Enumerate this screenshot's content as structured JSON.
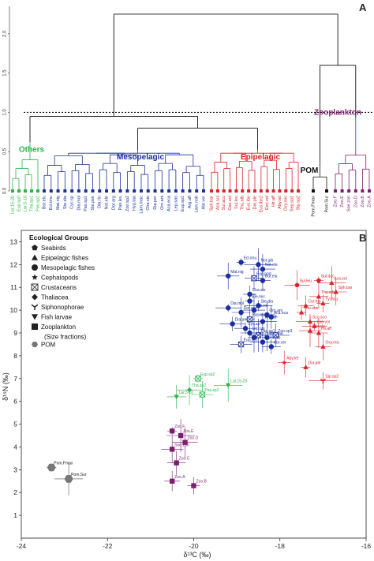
{
  "colors": {
    "others": "#2db34a",
    "mesopelagic": "#1a2f9c",
    "epipelagic": "#d8232a",
    "pom": "#111111",
    "zooplankton": "#7b1e6e",
    "gray": "#555555"
  },
  "chart_data": [
    {
      "type": "dendrogram",
      "panel_label": "A",
      "yaxis_ticks": [
        "0.0",
        "0.5",
        "1.0",
        "1.5",
        "2.0"
      ],
      "cut_height": 1.0,
      "groups": [
        {
          "name": "Others",
          "leaves": [
            "Lar.15-20",
            "Eup.sp2",
            "Lar.5-10",
            "Tha.sp1",
            "Pas.sp2"
          ]
        },
        {
          "name": "Mesopelagic",
          "leaves": [
            "Bor.elu",
            "Ect.imu",
            "Mat.nig",
            "Ste.dia",
            "Cyc.sp",
            "Dia.mol",
            "Pas.sp1",
            "Ste.pse",
            "Dia.rin",
            "Not.ele",
            "Dor.arg",
            "Pas.leu",
            "Zoo.sp2",
            "Hyg.taa",
            "Lam.mac",
            "Cha.sio",
            "Dia.per",
            "Orn.ani",
            "Aca.eca",
            "Lep.sas",
            "Eup.sp1",
            "Arg.aff",
            "Lam.nob",
            "Abr.ver"
          ]
        },
        {
          "name": "Epipelagic",
          "leaves": [
            "Sph.bar",
            "Aca.sul",
            "Sul.acu",
            "Gse.sol",
            "Sul.leu",
            "Thu.alb",
            "Eus.ibe",
            "Dar.ple",
            "Eus.ibe2",
            "Exo.vol",
            "Hir.aff",
            "Aby.tet",
            "Oxy.mic",
            "Sep.sp2",
            "Slp.sp2"
          ]
        },
        {
          "name": "POM",
          "leaves": [
            "Pom.Fmax",
            "Pom.Sur"
          ]
        },
        {
          "name": "Zooplankton",
          "leaves": [
            "Zoo.F",
            "Zoo.E",
            "Soe.zon",
            "Zoo.D",
            "Zoo.B",
            "Zoo.A"
          ]
        }
      ]
    },
    {
      "type": "scatter",
      "panel_label": "B",
      "xlabel": "δ¹³C (‰)",
      "ylabel": "δ¹⁵N (‰)",
      "xlim": [
        -24,
        -16
      ],
      "ylim": [
        0,
        13.5
      ],
      "xticks": [
        -24,
        -22,
        -20,
        -18,
        -16
      ],
      "yticks": [
        1,
        2,
        3,
        4,
        5,
        6,
        7,
        8,
        9,
        10,
        11,
        12,
        13
      ],
      "legend": {
        "title": "Ecological Groups",
        "entries": [
          {
            "marker": "pentagon",
            "label": "Seabirds"
          },
          {
            "marker": "triangle",
            "label": "Epipelagic fishes"
          },
          {
            "marker": "circle",
            "label": "Mesopelagic fishes"
          },
          {
            "marker": "star",
            "label": "Cephalopods"
          },
          {
            "marker": "boxx",
            "label": "Crustaceans"
          },
          {
            "marker": "diamond",
            "label": "Thaliacea"
          },
          {
            "marker": "tri-arrow",
            "label": "Siphonophorae"
          },
          {
            "marker": "down-triangle",
            "label": "Fish larvae"
          },
          {
            "marker": "square",
            "label": "Zooplankton"
          },
          {
            "marker": "none",
            "label": "(Size fractions)"
          },
          {
            "marker": "hexagon",
            "label": "POM"
          }
        ]
      },
      "series": [
        {
          "name": "Mesopelagic",
          "color_key": "mesopelagic",
          "points": [
            {
              "x": -18.9,
              "y": 12.1,
              "label": "Ect.imu",
              "marker": "circle"
            },
            {
              "x": -18.5,
              "y": 12.0,
              "label": "Not.gib",
              "marker": "circle"
            },
            {
              "x": -18.4,
              "y": 11.8,
              "label": "Not.ele",
              "marker": "circle"
            },
            {
              "x": -19.2,
              "y": 11.5,
              "label": "Mat.nig",
              "marker": "circle"
            },
            {
              "x": -18.6,
              "y": 11.4,
              "label": "Eup.pod",
              "marker": "boxx"
            },
            {
              "x": -18.4,
              "y": 11.3,
              "label": "Bor.elu",
              "marker": "circle"
            },
            {
              "x": -18.7,
              "y": 10.7,
              "label": "Cha.slo",
              "marker": "circle"
            },
            {
              "x": -18.7,
              "y": 10.4,
              "label": "Ele.mic",
              "marker": "circle"
            },
            {
              "x": -18.5,
              "y": 10.2,
              "label": "Ste.dia",
              "marker": "circle"
            },
            {
              "x": -19.2,
              "y": 10.1,
              "label": "Dia.mol",
              "marker": "circle"
            },
            {
              "x": -18.6,
              "y": 10.0,
              "label": "Dia.rin",
              "marker": "circle"
            },
            {
              "x": -18.9,
              "y": 9.9,
              "label": "Dor.arg",
              "marker": "circle"
            },
            {
              "x": -18.3,
              "y": 9.8,
              "label": "Orn.ani",
              "marker": "circle"
            },
            {
              "x": -18.2,
              "y": 9.7,
              "label": "Aca.eca",
              "marker": "circle"
            },
            {
              "x": -18.7,
              "y": 9.6,
              "label": "Pas.leu",
              "marker": "boxx"
            },
            {
              "x": -18.4,
              "y": 9.5,
              "label": "Arg.aff",
              "marker": "circle"
            },
            {
              "x": -19.1,
              "y": 9.4,
              "label": "Dia.per",
              "marker": "circle"
            },
            {
              "x": -18.8,
              "y": 9.2,
              "label": "Cyc.sp",
              "marker": "circle"
            },
            {
              "x": -18.7,
              "y": 9.0,
              "label": "Lep.las",
              "marker": "circle"
            },
            {
              "x": -18.5,
              "y": 8.9,
              "label": "Pas.sp1",
              "marker": "boxx"
            },
            {
              "x": -18.6,
              "y": 8.8,
              "label": "Lam.mac",
              "marker": "circle"
            },
            {
              "x": -18.3,
              "y": 8.8,
              "label": "Hyg.taa",
              "marker": "circle"
            },
            {
              "x": -18.1,
              "y": 8.9,
              "label": "Zoo.sp3",
              "marker": "boxx"
            },
            {
              "x": -18.4,
              "y": 8.6,
              "label": "Lam.nob",
              "marker": "circle"
            },
            {
              "x": -18.9,
              "y": 8.5,
              "label": "Eup.sp1",
              "marker": "boxx"
            },
            {
              "x": -18.2,
              "y": 8.4,
              "label": "Abr.ver",
              "marker": "circle"
            }
          ]
        },
        {
          "name": "Epipelagic",
          "color_key": "epipelagic",
          "points": [
            {
              "x": -17.1,
              "y": 11.3,
              "label": "Sul.dac",
              "marker": "pentagon"
            },
            {
              "x": -16.8,
              "y": 11.2,
              "label": "Aca.sol",
              "marker": "triangle"
            },
            {
              "x": -17.6,
              "y": 11.1,
              "label": "Sul.leu",
              "marker": "pentagon"
            },
            {
              "x": -16.7,
              "y": 10.8,
              "label": "Sph.bar",
              "marker": "triangle"
            },
            {
              "x": -17.1,
              "y": 10.6,
              "label": "Thu.alb",
              "marker": "triangle"
            },
            {
              "x": -17.4,
              "y": 10.2,
              "label": "Cor.hip",
              "marker": "triangle"
            },
            {
              "x": -17.0,
              "y": 10.3,
              "label": "Tyl.acu",
              "marker": "triangle"
            },
            {
              "x": -17.5,
              "y": 9.9,
              "label": "Thu.obe",
              "marker": "triangle"
            },
            {
              "x": -17.3,
              "y": 9.5,
              "label": "Sco.sco",
              "marker": "triangle"
            },
            {
              "x": -17.2,
              "y": 9.3,
              "label": "Exo.vol",
              "marker": "triangle"
            },
            {
              "x": -17.3,
              "y": 9.1,
              "label": "Cor.ele",
              "marker": "triangle"
            },
            {
              "x": -17.1,
              "y": 9.0,
              "label": "Hir.aff",
              "marker": "triangle"
            },
            {
              "x": -17.0,
              "y": 8.4,
              "label": "Oxy.mic",
              "marker": "triangle"
            },
            {
              "x": -17.9,
              "y": 7.7,
              "label": "Aby.let",
              "marker": "star"
            },
            {
              "x": -17.4,
              "y": 7.5,
              "label": "Dor.ple",
              "marker": "triangle"
            },
            {
              "x": -17.0,
              "y": 6.9,
              "label": "Sip.sp2",
              "marker": "tri-arrow"
            }
          ]
        },
        {
          "name": "Others",
          "color_key": "others",
          "points": [
            {
              "x": -19.9,
              "y": 7.0,
              "label": "Eup.sp2",
              "marker": "boxx"
            },
            {
              "x": -19.2,
              "y": 6.7,
              "label": "Lar.15-20",
              "marker": "down-triangle"
            },
            {
              "x": -20.1,
              "y": 6.5,
              "label": "Tha.sp2",
              "marker": "diamond"
            },
            {
              "x": -19.8,
              "y": 6.3,
              "label": "Pas.sp2",
              "marker": "boxx"
            },
            {
              "x": -20.4,
              "y": 6.2,
              "label": "Lar.5-10",
              "marker": "down-triangle"
            }
          ]
        },
        {
          "name": "Zooplankton",
          "color_key": "zooplankton",
          "points": [
            {
              "x": -20.5,
              "y": 4.7,
              "label": "Zoo.F",
              "marker": "square"
            },
            {
              "x": -20.3,
              "y": 4.5,
              "label": "Zoo.E",
              "marker": "square"
            },
            {
              "x": -20.2,
              "y": 4.2,
              "label": "Zoo.D",
              "marker": "square"
            },
            {
              "x": -20.5,
              "y": 3.9,
              "label": "Soe.zon",
              "marker": "square"
            },
            {
              "x": -20.4,
              "y": 3.3,
              "label": "Zoo.C",
              "marker": "square"
            },
            {
              "x": -20.5,
              "y": 2.5,
              "label": "Zoo.A",
              "marker": "square"
            },
            {
              "x": -20.0,
              "y": 2.3,
              "label": "Zoo.B",
              "marker": "square"
            }
          ]
        },
        {
          "name": "POM",
          "color_key": "pom",
          "points": [
            {
              "x": -23.3,
              "y": 3.1,
              "label": "Pom.Fmax",
              "marker": "hexagon"
            },
            {
              "x": -22.9,
              "y": 2.6,
              "label": "Pom.Sur",
              "marker": "hexagon"
            }
          ]
        }
      ]
    }
  ]
}
